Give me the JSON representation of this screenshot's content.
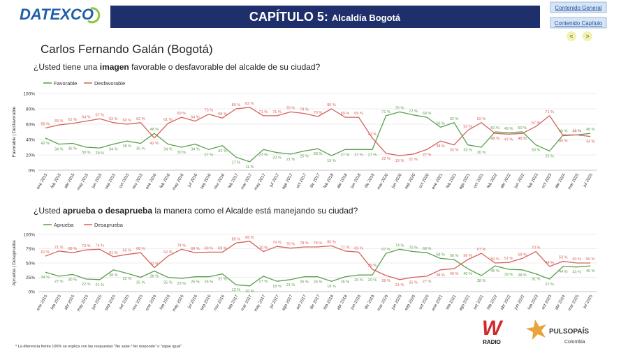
{
  "header": {
    "logo": "DATEXCO",
    "chapter": "CAPÍTULO 5:",
    "chapter_title": "Alcaldía Bogotá",
    "buttons": [
      "Contenido General",
      "Contenido Capítulo"
    ],
    "prev": "<",
    "next": ">",
    "subject": "Carlos Fernando Galán (Bogotá)"
  },
  "footer": {
    "note": "* La diferencia frente 100% se explica con las respuestas \"No sabe / No responde\" o \"sigue igual\"",
    "radio_logo": "W",
    "radio_text": "RADIO",
    "pulso_a": "PULSO",
    "pulso_b": "PAÍS",
    "pulso_c": "Colombia"
  },
  "chart_data": [
    {
      "type": "line",
      "title_parts": [
        {
          "text": "¿Usted tiene una ",
          "bold": false
        },
        {
          "text": "imagen",
          "bold": true
        },
        {
          "text": " favorable o desfavorable del alcalde de su ciudad?",
          "bold": false
        }
      ],
      "y_label": "Favorable | Desfavorable",
      "categories": [
        "ene 2015",
        "feb 2015",
        "abr 2015",
        "may 2015",
        "jun 2015",
        "sep 2015",
        "oct 2015",
        "nov 2015",
        "ene 2016",
        "feb 2016",
        "may 2016",
        "jul 2016",
        "sep 2016",
        "nov 2016",
        "feb 2017",
        "mar 2017",
        "may 2017",
        "jul 2017",
        "ago 2017",
        "oct 2017",
        "dic 2017",
        "feb 2018",
        "abr 2018",
        "jun 2018",
        "dic 2019",
        "mar 2020",
        "jun 2020",
        "sep 2020",
        "oct 2020",
        "ene 2021",
        "feb 2021",
        "ago 2021",
        "oct 2021",
        "feb 2022",
        "abr 2022",
        "jun 2022",
        "feb 2023",
        "oct 2023",
        "abr 2024",
        "mar 2025",
        "jul 2025"
      ],
      "series": [
        {
          "name": "Favorable",
          "color": "#5a9e4b",
          "values": [
            42,
            34,
            35,
            30,
            29,
            34,
            38,
            35,
            48,
            34,
            30,
            34,
            27,
            32,
            17,
            11,
            27,
            23,
            21,
            25,
            28,
            19,
            27,
            27,
            27,
            71,
            76,
            72,
            69,
            56,
            62,
            33,
            30,
            50,
            49,
            50,
            33,
            25,
            46,
            46,
            48
          ],
          "value_labels": [
            "42 %",
            "34 %",
            "35 %",
            "30 %",
            "29 %",
            "34 %",
            "38 %",
            "35 %",
            "48 %",
            "34 %",
            "30 %",
            "34 %",
            "27 %",
            "32 %",
            "17 %",
            "11 %",
            "27 %",
            "23 %",
            "21 %",
            "25 %",
            "28 %",
            "19 %",
            "27 %",
            "27 %",
            "27 %",
            "71 %",
            "76 %",
            "72 %",
            "69 %",
            "56 %",
            "62 %",
            "33 %",
            "30 %",
            "50 %",
            "49 %",
            "50 %",
            "33 %",
            "25 %",
            "46 %",
            "46 %",
            "48 %"
          ]
        },
        {
          "name": "Desfavorable",
          "color": "#d6605a",
          "values": [
            55,
            59,
            61,
            64,
            67,
            62,
            60,
            62,
            42,
            61,
            69,
            64,
            73,
            68,
            80,
            82,
            71,
            71,
            76,
            74,
            70,
            80,
            69,
            69,
            42,
            22,
            19,
            21,
            27,
            38,
            33,
            52,
            62,
            48,
            47,
            48,
            57,
            71,
            45,
            46,
            44
          ],
          "value_labels": [
            "55 %",
            "59 %",
            "61 %",
            "64 %",
            "67 %",
            "62 %",
            "60 %",
            "62 %",
            "42 %",
            "61 %",
            "69 %",
            "64 %",
            "73 %",
            "68 %",
            "80 %",
            "82 %",
            "71 %",
            "71 %",
            "76 %",
            "74 %",
            "70 %",
            "80 %",
            "69 %",
            "69 %",
            "42 %",
            "22 %",
            "19 %",
            "21 %",
            "27 %",
            "38 %",
            "33 %",
            "52 %",
            "62 %",
            "48 %",
            "47 %",
            "48 %",
            "57 %",
            "71 %",
            "45 %",
            "46 %",
            "44 %"
          ]
        }
      ],
      "ylim": [
        0,
        100
      ],
      "yticks": [
        {
          "value": 0,
          "label": "0%"
        },
        {
          "value": 20,
          "label": "20%"
        },
        {
          "value": 40,
          "label": "40%"
        },
        {
          "value": 60,
          "label": "60%"
        },
        {
          "value": 80,
          "label": "80%"
        },
        {
          "value": 100,
          "label": "100%"
        }
      ],
      "grid": true
    },
    {
      "type": "line",
      "title_parts": [
        {
          "text": "¿Usted ",
          "bold": false
        },
        {
          "text": "aprueba o desaprueba",
          "bold": true
        },
        {
          "text": " la manera como el Alcalde está manejando su ciudad?",
          "bold": false
        }
      ],
      "y_label": "Aprueba | Desaprueba",
      "categories": [
        "ene 2015",
        "feb 2015",
        "abr 2015",
        "may 2015",
        "jun 2015",
        "sep 2015",
        "oct 2015",
        "nov 2015",
        "ene 2016",
        "feb 2016",
        "may 2016",
        "jul 2016",
        "sep 2016",
        "nov 2016",
        "feb 2017",
        "mar 2017",
        "may 2017",
        "jul 2017",
        "ago 2017",
        "oct 2017",
        "dic 2017",
        "feb 2018",
        "abr 2018",
        "jun 2018",
        "dic 2019",
        "mar 2020",
        "jun 2020",
        "sep 2020",
        "oct 2020",
        "ene 2021",
        "feb 2021",
        "ago 2021",
        "oct 2021",
        "feb 2022",
        "abr 2022",
        "jun 2022",
        "feb 2023",
        "oct 2023",
        "abr 2024",
        "mar 2025",
        "jul 2025"
      ],
      "series": [
        {
          "name": "Aprueba",
          "color": "#5a9e4b",
          "values": [
            34,
            27,
            30,
            22,
            21,
            38,
            32,
            25,
            36,
            25,
            23,
            26,
            26,
            31,
            12,
            10,
            27,
            18,
            21,
            26,
            26,
            18,
            26,
            29,
            29,
            67,
            74,
            70,
            68,
            58,
            56,
            40,
            28,
            45,
            39,
            38,
            31,
            22,
            44,
            43,
            45
          ],
          "value_labels": [
            "34 %",
            "27 %",
            "30 %",
            "22 %",
            "21 %",
            "38 %",
            "32 %",
            "25 %",
            "36 %",
            "25 %",
            "23 %",
            "26 %",
            "26 %",
            "31 %",
            "12 %",
            "10 %",
            "27 %",
            "18 %",
            "21 %",
            "26 %",
            "26 %",
            "18 %",
            "26 %",
            "29 %",
            "29 %",
            "67 %",
            "74 %",
            "70 %",
            "68 %",
            "58 %",
            "56 %",
            "40 %",
            "28 %",
            "45 %",
            "39 %",
            "38 %",
            "31 %",
            "22 %",
            "44 %",
            "43 %",
            "45 %"
          ]
        },
        {
          "name": "Desaprueba",
          "color": "#d6605a",
          "values": [
            62,
            71,
            68,
            73,
            74,
            61,
            65,
            68,
            42,
            62,
            74,
            68,
            69,
            69,
            85,
            88,
            70,
            79,
            76,
            78,
            78,
            80,
            71,
            69,
            39,
            28,
            21,
            25,
            27,
            38,
            40,
            56,
            67,
            50,
            51,
            58,
            70,
            44,
            53,
            50,
            50
          ],
          "value_labels": [
            "62 %",
            "71 %",
            "68 %",
            "73 %",
            "74 %",
            "61 %",
            "65 %",
            "68 %",
            "42 %",
            "62 %",
            "74 %",
            "68 %",
            "69 %",
            "69 %",
            "85 %",
            "88 %",
            "70 %",
            "79 %",
            "76 %",
            "78 %",
            "78 %",
            "80 %",
            "71 %",
            "69 %",
            "39 %",
            "28 %",
            "21 %",
            "25 %",
            "27 %",
            "38 %",
            "40 %",
            "56 %",
            "67 %",
            "50 %",
            "51 %",
            "58 %",
            "70 %",
            "44 %",
            "53 %",
            "50 %",
            "50 %"
          ]
        }
      ],
      "ylim": [
        0,
        100
      ],
      "yticks": [
        {
          "value": 0,
          "label": "0%"
        },
        {
          "value": 25,
          "label": "25%"
        },
        {
          "value": 50,
          "label": "50%"
        },
        {
          "value": 75,
          "label": "75%"
        },
        {
          "value": 100,
          "label": "100%"
        }
      ],
      "grid": true
    }
  ]
}
